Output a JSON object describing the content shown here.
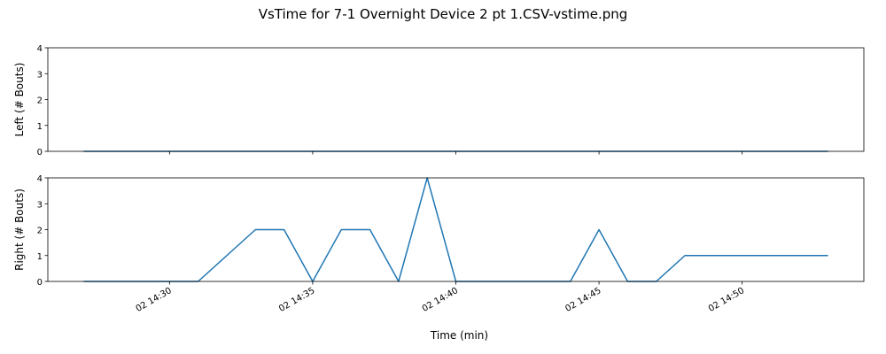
{
  "title": "VsTime for 7-1 Overnight Device 2 pt 1.CSV-vstime.png",
  "chart_data": [
    {
      "type": "line",
      "ylabel": "Left (# Bouts)",
      "ylim": [
        0,
        4
      ],
      "yticks": [
        "0",
        "1",
        "2",
        "3",
        "4"
      ],
      "x": [
        "14:27",
        "14:28",
        "14:29",
        "14:30",
        "14:31",
        "14:32",
        "14:33",
        "14:34",
        "14:35",
        "14:36",
        "14:37",
        "14:38",
        "14:39",
        "14:40",
        "14:41",
        "14:42",
        "14:43",
        "14:44",
        "14:45",
        "14:46",
        "14:47",
        "14:48",
        "14:49",
        "14:50",
        "14:51",
        "14:52",
        "14:53"
      ],
      "values": [
        0,
        0,
        0,
        0,
        0,
        0,
        0,
        0,
        0,
        0,
        0,
        0,
        0,
        0,
        0,
        0,
        0,
        0,
        0,
        0,
        0,
        0,
        0,
        0,
        0,
        0,
        0
      ],
      "color": "#1f77b4"
    },
    {
      "type": "line",
      "ylabel": "Right (# Bouts)",
      "xlabel": "Time (min)",
      "ylim": [
        0,
        4
      ],
      "yticks": [
        "0",
        "1",
        "2",
        "3",
        "4"
      ],
      "xlim": [
        "14:25.75",
        "14:54.25"
      ],
      "xticks": [
        {
          "value": "14:30",
          "label": "02 14:30"
        },
        {
          "value": "14:35",
          "label": "02 14:35"
        },
        {
          "value": "14:40",
          "label": "02 14:40"
        },
        {
          "value": "14:45",
          "label": "02 14:45"
        },
        {
          "value": "14:50",
          "label": "02 14:50"
        }
      ],
      "x": [
        "14:27",
        "14:28",
        "14:29",
        "14:30",
        "14:31",
        "14:32",
        "14:33",
        "14:34",
        "14:35",
        "14:36",
        "14:37",
        "14:38",
        "14:39",
        "14:40",
        "14:41",
        "14:42",
        "14:43",
        "14:44",
        "14:45",
        "14:46",
        "14:47",
        "14:48",
        "14:49",
        "14:50",
        "14:51",
        "14:52",
        "14:53"
      ],
      "values": [
        0,
        0,
        0,
        0,
        0,
        1,
        2,
        2,
        0,
        2,
        2,
        0,
        4,
        0,
        0,
        0,
        0,
        0,
        2,
        0,
        0,
        1,
        1,
        1,
        1,
        1,
        1
      ],
      "color": "#1f77b4"
    }
  ]
}
